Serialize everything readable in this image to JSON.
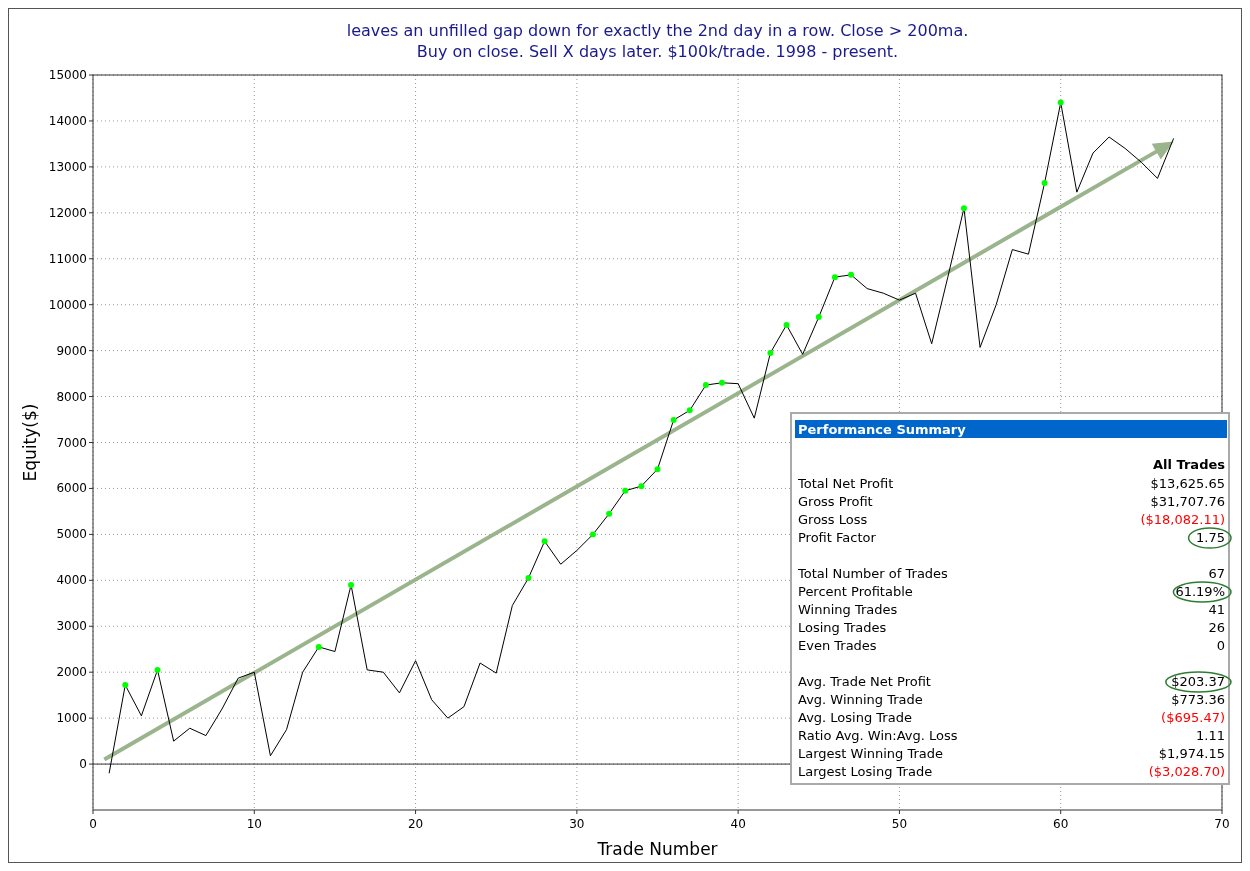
{
  "chart_data": {
    "type": "line",
    "title": "leaves an unfilled gap down for exactly the 2nd day in a row. Close > 200ma.\nBuy on close. Sell X days later. $100k/trade. 1998 - present.",
    "xlabel": "Trade Number",
    "ylabel": "Equity($)",
    "x": [
      1,
      2,
      3,
      4,
      5,
      6,
      7,
      8,
      9,
      10,
      11,
      12,
      13,
      14,
      15,
      16,
      17,
      18,
      19,
      20,
      21,
      22,
      23,
      24,
      25,
      26,
      27,
      28,
      29,
      30,
      31,
      32,
      33,
      34,
      35,
      36,
      37,
      38,
      39,
      40,
      41,
      42,
      43,
      44,
      45,
      46,
      47,
      48,
      49,
      50,
      51,
      52,
      53,
      54,
      55,
      56,
      57,
      58,
      59,
      60,
      61,
      62,
      63,
      64,
      65,
      66,
      67
    ],
    "series": [
      {
        "color": "#000000",
        "values": [
          -200,
          1720,
          1050,
          2050,
          500,
          780,
          620,
          1200,
          1870,
          2000,
          180,
          750,
          2000,
          2550,
          2450,
          3900,
          2050,
          2000,
          1550,
          2250,
          1400,
          1000,
          1250,
          2200,
          1980,
          3450,
          4050,
          4850,
          4350,
          4650,
          5000,
          5450,
          5950,
          6050,
          6420,
          7490,
          7700,
          8250,
          8300,
          8280,
          7530,
          8950,
          9560,
          8920,
          9730,
          10600,
          10650,
          10350,
          10250,
          10100,
          10250,
          9150,
          10600,
          12100,
          9070,
          10000,
          11200,
          11100,
          12650,
          14400,
          12450,
          13300,
          13650,
          13400,
          13100,
          12750,
          13620
        ]
      },
      {
        "type": "scatter",
        "color": "#00ff00",
        "marker": "circle",
        "values": [
          null,
          1720,
          null,
          2050,
          null,
          null,
          null,
          null,
          null,
          null,
          null,
          null,
          null,
          2550,
          null,
          3900,
          null,
          null,
          null,
          null,
          null,
          null,
          null,
          null,
          null,
          null,
          4050,
          4850,
          null,
          null,
          5000,
          5450,
          5950,
          6050,
          6420,
          7490,
          7700,
          8250,
          8300,
          null,
          null,
          8950,
          9560,
          null,
          9730,
          10600,
          10650,
          null,
          null,
          null,
          null,
          null,
          null,
          12100,
          null,
          null,
          null,
          null,
          12650,
          14400,
          null,
          null,
          null,
          null,
          null,
          null,
          null
        ]
      }
    ],
    "xlim": [
      0,
      70
    ],
    "xticks": [
      0,
      10,
      20,
      30,
      40,
      50,
      60,
      70
    ],
    "ylim": [
      -1000,
      15000
    ],
    "yticks": [
      0,
      1000,
      2000,
      3000,
      4000,
      5000,
      6000,
      7000,
      8000,
      9000,
      10000,
      11000,
      12000,
      13000,
      14000,
      15000
    ],
    "grid": true,
    "annotations": [
      "Performance Summary",
      "All Trades",
      "Total Net Profit",
      "$13,625.65",
      "Gross Profit",
      "$31,707.76",
      "Gross Loss",
      "($18,082.11)",
      "Profit Factor",
      "1.75",
      "Total Number of Trades",
      "67",
      "Percent Profitable",
      "61.19%",
      "Winning Trades",
      "41",
      "Losing Trades",
      "26",
      "Even Trades",
      "0",
      "Avg. Trade Net Profit",
      "$203.37",
      "Avg. Winning Trade",
      "$773.36",
      "Avg. Losing Trade",
      "($695.47)",
      "Ratio Avg. Win:Avg. Loss",
      "1.11",
      "Largest Winning Trade",
      "$1,974.15",
      "Largest Losing Trade",
      "($3,028.70)"
    ]
  }
}
